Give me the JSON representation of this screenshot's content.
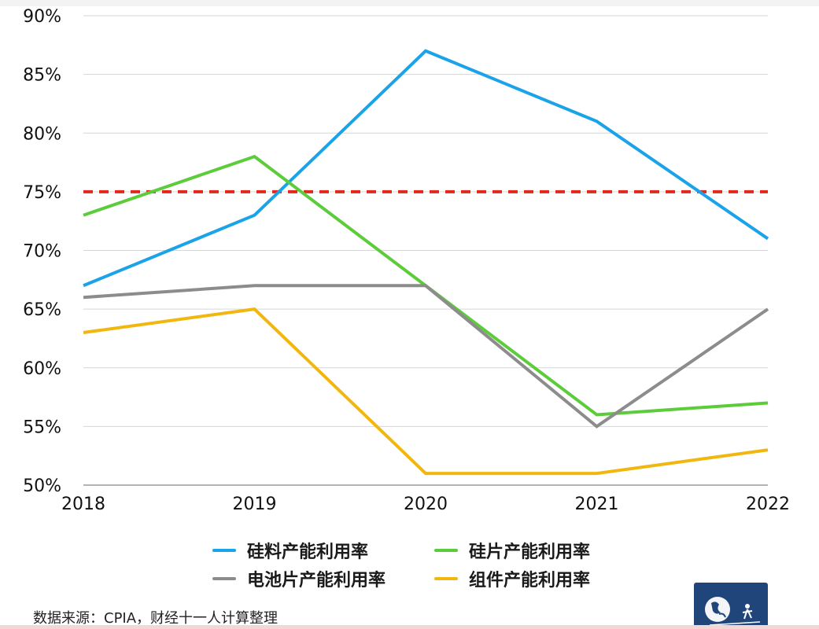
{
  "chart_data": {
    "type": "line",
    "categories": [
      "2018",
      "2019",
      "2020",
      "2021",
      "2022"
    ],
    "y_ticks": [
      "50%",
      "55%",
      "60%",
      "65%",
      "70%",
      "75%",
      "80%",
      "85%",
      "90%"
    ],
    "ylim": [
      50,
      90
    ],
    "series": [
      {
        "name": "硅料产能利用率",
        "color": "#1aa3e8",
        "values": [
          67,
          73,
          87,
          81,
          71
        ]
      },
      {
        "name": "硅片产能利用率",
        "color": "#5ccc3a",
        "values": [
          73,
          78,
          67,
          56,
          57
        ]
      },
      {
        "name": "电池片产能利用率",
        "color": "#8c8c8c",
        "values": [
          66,
          67,
          67,
          55,
          65
        ]
      },
      {
        "name": "组件产能利用率",
        "color": "#f2b70e",
        "values": [
          63,
          65,
          51,
          51,
          53
        ]
      }
    ],
    "reference_line": {
      "value": 75,
      "color": "#e0281c",
      "style": "dashed"
    },
    "source": "数据来源：CPIA，财经十一人计算整理",
    "grid": true,
    "legend": "bottom"
  }
}
